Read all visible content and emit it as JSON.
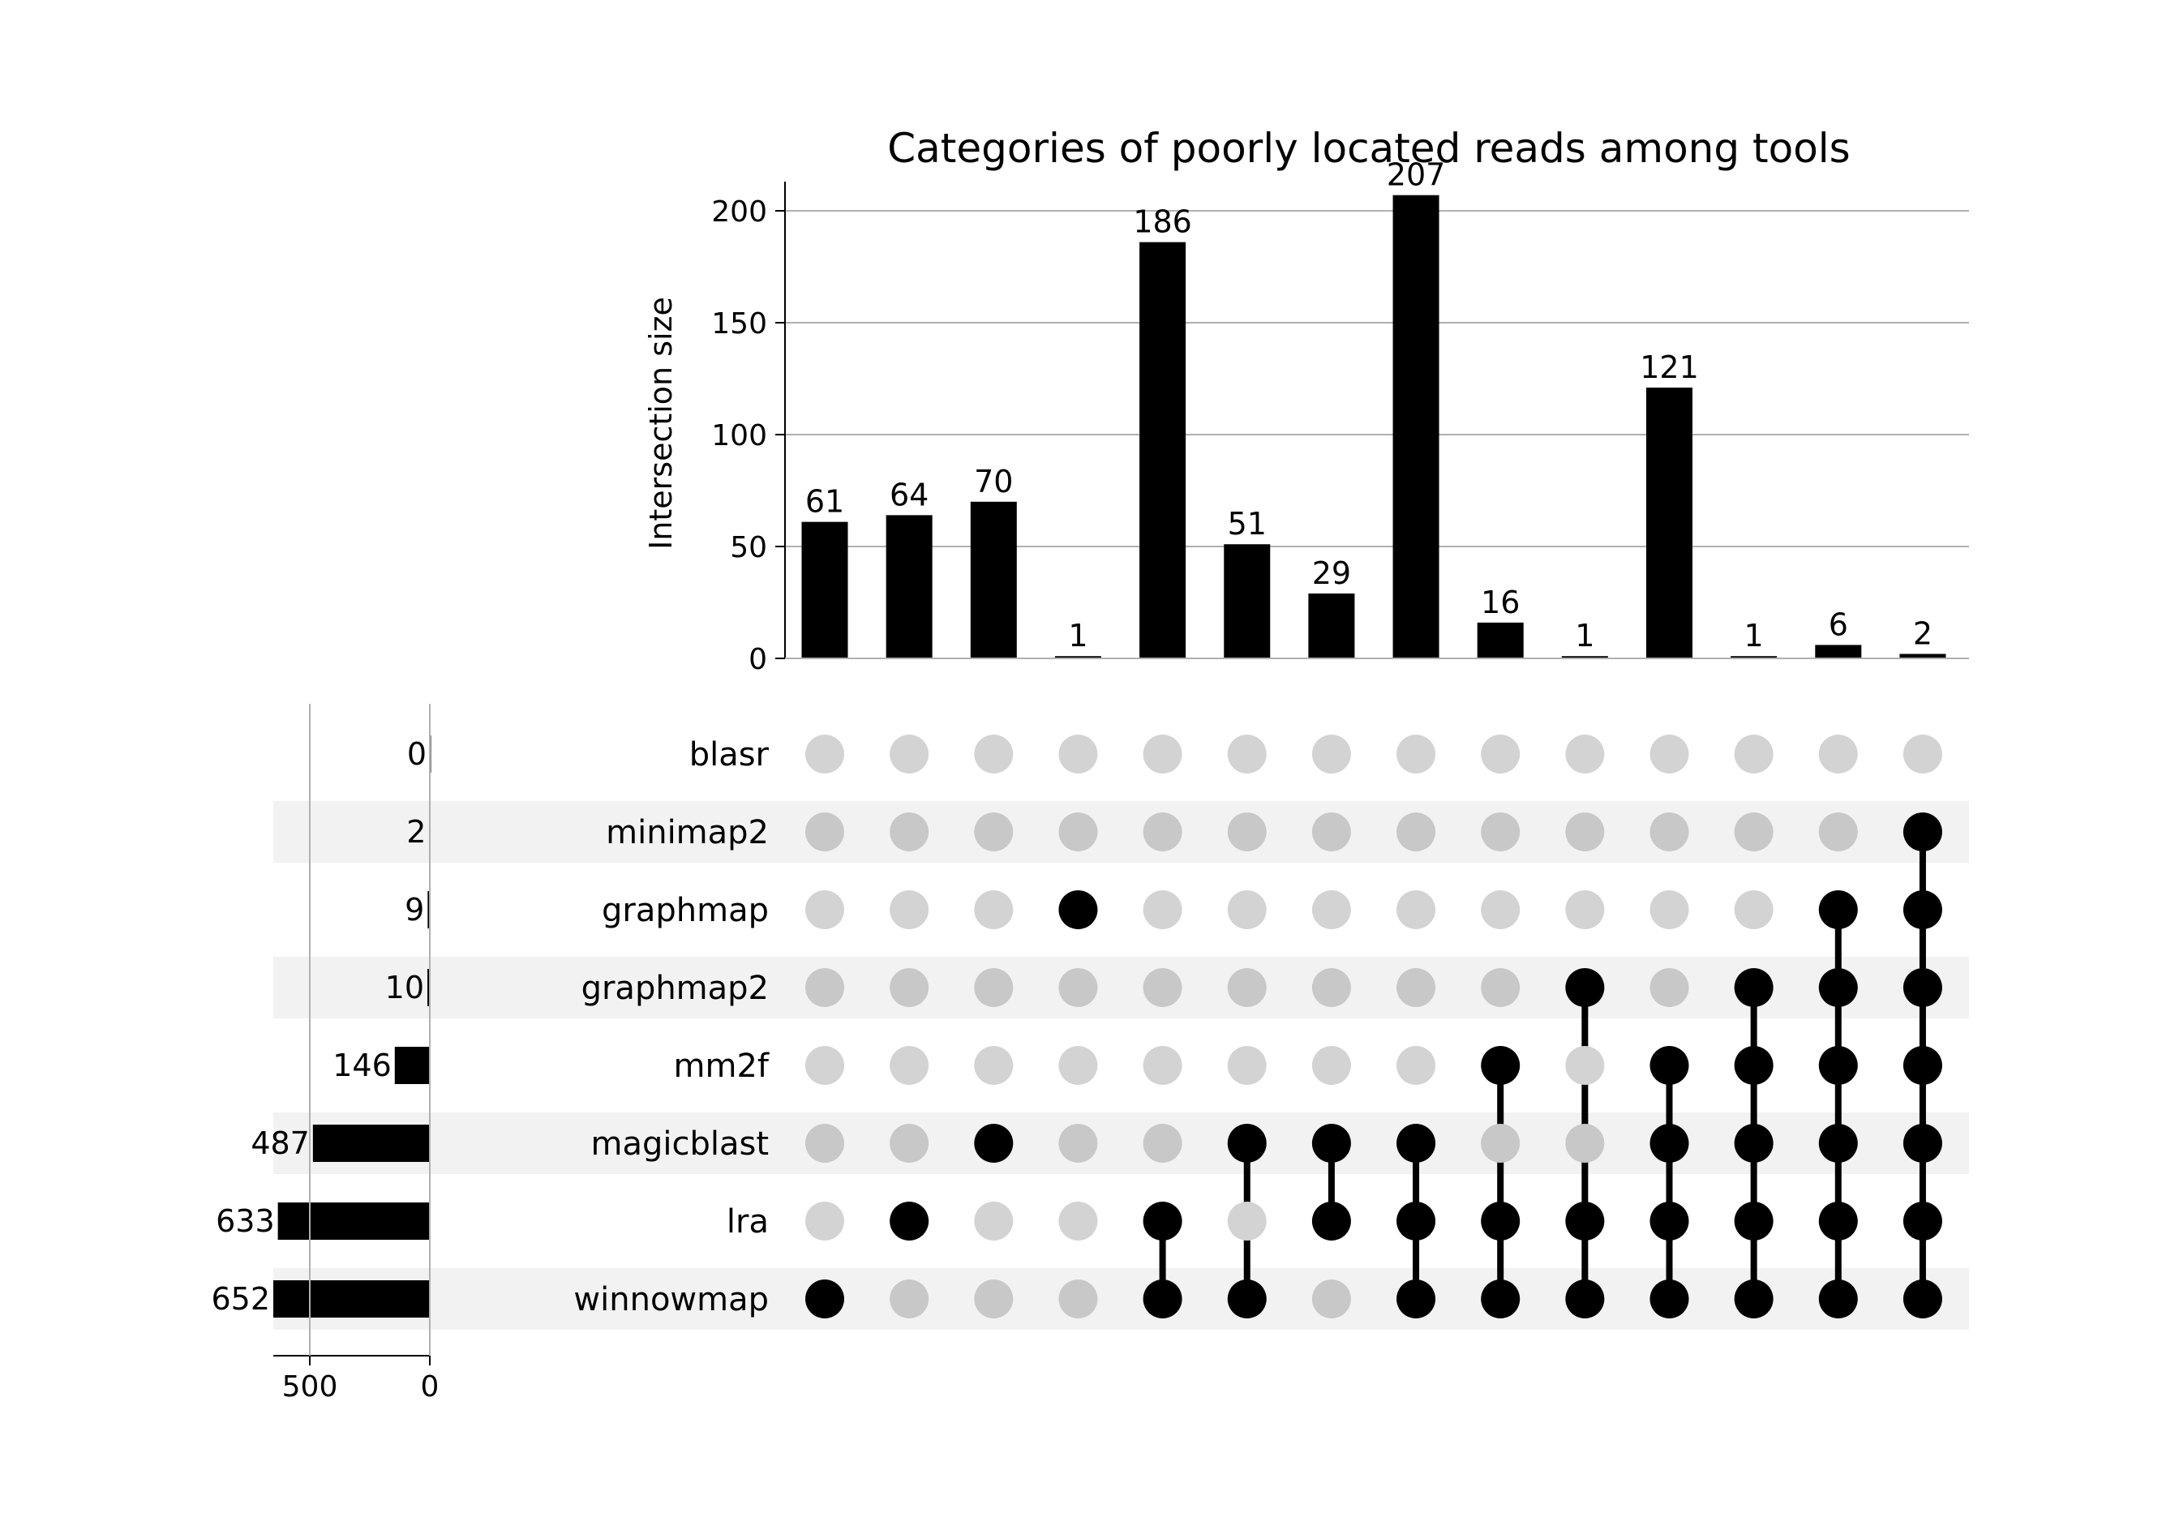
{
  "chart_data": {
    "type": "upset",
    "title": "Categories of poorly located reads among tools",
    "ylabel": "Intersection size",
    "ylim": [
      0,
      218
    ],
    "yticks": [
      0,
      50,
      100,
      150,
      200
    ],
    "sets": [
      "blasr",
      "minimap2",
      "graphmap",
      "graphmap2",
      "mm2f",
      "magicblast",
      "lra",
      "winnowmap"
    ],
    "set_sizes": [
      0,
      2,
      9,
      10,
      146,
      487,
      633,
      652
    ],
    "set_size_xlim": [
      630,
      0
    ],
    "set_size_ticks": [
      500,
      0
    ],
    "intersections": [
      {
        "sets": [
          "winnowmap"
        ],
        "size": 61
      },
      {
        "sets": [
          "lra"
        ],
        "size": 64
      },
      {
        "sets": [
          "magicblast"
        ],
        "size": 70
      },
      {
        "sets": [
          "graphmap"
        ],
        "size": 1
      },
      {
        "sets": [
          "lra",
          "winnowmap"
        ],
        "size": 186
      },
      {
        "sets": [
          "magicblast",
          "winnowmap"
        ],
        "size": 51
      },
      {
        "sets": [
          "magicblast",
          "lra"
        ],
        "size": 29
      },
      {
        "sets": [
          "magicblast",
          "lra",
          "winnowmap"
        ],
        "size": 207
      },
      {
        "sets": [
          "mm2f",
          "lra",
          "winnowmap"
        ],
        "size": 16
      },
      {
        "sets": [
          "graphmap2",
          "lra",
          "winnowmap"
        ],
        "size": 1
      },
      {
        "sets": [
          "mm2f",
          "magicblast",
          "lra",
          "winnowmap"
        ],
        "size": 121
      },
      {
        "sets": [
          "graphmap2",
          "mm2f",
          "magicblast",
          "lra",
          "winnowmap"
        ],
        "size": 1
      },
      {
        "sets": [
          "graphmap",
          "graphmap2",
          "mm2f",
          "magicblast",
          "lra",
          "winnowmap"
        ],
        "size": 6
      },
      {
        "sets": [
          "minimap2",
          "graphmap",
          "graphmap2",
          "mm2f",
          "magicblast",
          "lra",
          "winnowmap"
        ],
        "size": 2
      }
    ],
    "grid": true,
    "colors": {
      "bar": "#000000",
      "active_dot": "#000000",
      "inactive_dot": "#d3d3d3",
      "inactive_dot_shaded": "#c8c8c8",
      "row_shade": "#f2f2f2",
      "grid": "#b0b0b0"
    }
  }
}
